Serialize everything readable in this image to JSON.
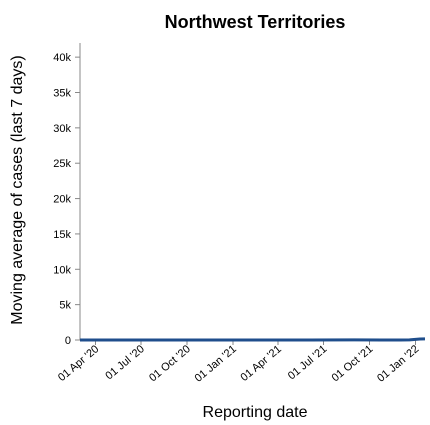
{
  "chart_data": {
    "type": "line",
    "title": "Northwest Territories",
    "xlabel": "Reporting date",
    "ylabel": "Moving average of cases (last 7 days)",
    "x_ticks": [
      "01 Apr '20",
      "01 Jul '20",
      "01 Oct '20",
      "01 Jan '21",
      "01 Apr '21",
      "01 Jul '21",
      "01 Oct '21",
      "01 Jan '22"
    ],
    "x_tick_dates": [
      "2020-04-01",
      "2020-07-01",
      "2020-10-01",
      "2021-01-01",
      "2021-04-01",
      "2021-07-01",
      "2021-10-01",
      "2022-01-01"
    ],
    "xlim": [
      "2020-03-01",
      "2022-01-20"
    ],
    "y_ticks": [
      "0",
      "5k",
      "10k",
      "15k",
      "20k",
      "25k",
      "30k",
      "35k",
      "40k"
    ],
    "y_tick_values": [
      0,
      5000,
      10000,
      15000,
      20000,
      25000,
      30000,
      35000,
      40000
    ],
    "ylim": [
      0,
      42000
    ],
    "grid": false,
    "series": [
      {
        "color": "#1f4e8c",
        "x": [
          "2020-03-01",
          "2020-06-01",
          "2020-09-01",
          "2020-12-01",
          "2021-03-01",
          "2021-06-01",
          "2021-09-01",
          "2021-12-01",
          "2021-12-20",
          "2022-01-01",
          "2022-01-10",
          "2022-01-20"
        ],
        "y": [
          0,
          0,
          0,
          0,
          0,
          2,
          10,
          5,
          20,
          80,
          140,
          160
        ]
      }
    ]
  }
}
